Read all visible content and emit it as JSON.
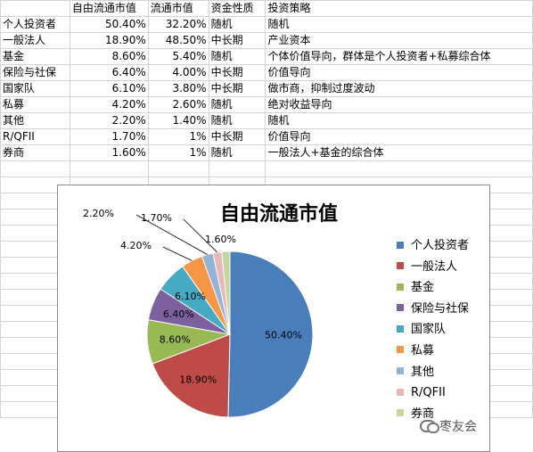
{
  "table": {
    "headers": [
      "",
      "自由流通市值",
      "流通市值",
      "资金性质",
      "投资策略"
    ],
    "rows": [
      [
        "个人投资者",
        "50.40%",
        "32.20%",
        "随机",
        "随机"
      ],
      [
        "一般法人",
        "18.90%",
        "48.50%",
        "中长期",
        "产业资本"
      ],
      [
        "基金",
        "8.60%",
        "5.40%",
        "随机",
        "个体价值导向，群体是个人投资者+私募综合体"
      ],
      [
        "保险与社保",
        "6.40%",
        "4.00%",
        "中长期",
        "价值导向"
      ],
      [
        "国家队",
        "6.10%",
        "3.80%",
        "中长期",
        "做市商，抑制过度波动"
      ],
      [
        "私募",
        "4.20%",
        "2.60%",
        "随机",
        "绝对收益导向"
      ],
      [
        "其他",
        "2.20%",
        "1.40%",
        "随机",
        "随机"
      ],
      [
        "R/QFII",
        "1.70%",
        "1%",
        "中长期",
        "价值导向"
      ],
      [
        "券商",
        "1.60%",
        "1%",
        "随机",
        "一般法人+基金的综合体"
      ]
    ]
  },
  "chart_data": {
    "type": "pie",
    "title": "自由流通市值",
    "categories": [
      "个人投资者",
      "一般法人",
      "基金",
      "保险与社保",
      "国家队",
      "私募",
      "其他",
      "R/QFII",
      "券商"
    ],
    "values": [
      50.4,
      18.9,
      8.6,
      6.4,
      6.1,
      4.2,
      2.2,
      1.7,
      1.6
    ],
    "data_labels": [
      "50.40%",
      "18.90%",
      "8.60%",
      "6.40%",
      "6.10%",
      "4.20%",
      "2.20%",
      "1.70%",
      "1.60%"
    ],
    "colors": [
      "#4a7ebb",
      "#be4b48",
      "#98b954",
      "#7d60a0",
      "#46aac5",
      "#f79646",
      "#95b3d7",
      "#e6b9b8",
      "#c3d69b"
    ],
    "legend_position": "right"
  },
  "watermark": {
    "text": "枣友会",
    "icon": "wechat-icon"
  }
}
